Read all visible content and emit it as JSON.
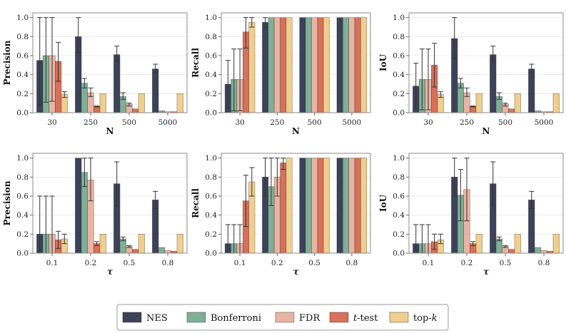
{
  "legend": [
    {
      "label": "NES",
      "italic": false
    },
    {
      "label": "Bonferroni",
      "italic": false
    },
    {
      "label": "FDR",
      "italic": false
    },
    {
      "label": "t",
      "suffix": "-test",
      "italic": true
    },
    {
      "label": "top-",
      "suffix": "k",
      "italic_suffix": true
    }
  ],
  "colors": {
    "NES": "#3c4259",
    "Bonferroni": "#7fb096",
    "FDR": "#e8b4a4",
    "t-test": "#d8705a",
    "top-k": "#f0cf8e",
    "frame": "#888888",
    "grid": "#ececec",
    "errorbar": "#333333"
  },
  "chart_data": [
    {
      "type": "bar",
      "id": "precision-n",
      "xlabel": "N",
      "ylabel": "Precision",
      "categories": [
        "30",
        "250",
        "500",
        "5000"
      ],
      "ylim": [
        0,
        1.05
      ],
      "yticks": [
        "0.0",
        "0.2",
        "0.4",
        "0.6",
        "0.8",
        "1.0"
      ],
      "series": [
        {
          "name": "NES",
          "values": [
            0.55,
            0.8,
            0.61,
            0.46
          ],
          "err": [
            [
              0.08,
              1.0
            ],
            [
              0.63,
              1.0
            ],
            [
              0.54,
              0.7
            ],
            [
              0.42,
              0.51
            ]
          ]
        },
        {
          "name": "Bonferroni",
          "values": [
            0.6,
            0.31,
            0.17,
            0.02
          ],
          "err": [
            [
              0.11,
              1.0
            ],
            [
              0.26,
              0.36
            ],
            [
              0.14,
              0.21
            ],
            [
              0.02,
              0.02
            ]
          ]
        },
        {
          "name": "FDR",
          "values": [
            0.6,
            0.21,
            0.09,
            0.01
          ],
          "err": [
            [
              0.12,
              1.0
            ],
            [
              0.17,
              0.26
            ],
            [
              0.07,
              0.1
            ],
            [
              0.01,
              0.01
            ]
          ]
        },
        {
          "name": "t-test",
          "values": [
            0.54,
            0.07,
            0.04,
            0.01
          ],
          "err": [
            [
              0.33,
              0.74
            ],
            [
              0.06,
              0.07
            ],
            [
              0.04,
              0.04
            ],
            [
              0.01,
              0.01
            ]
          ]
        },
        {
          "name": "top-k",
          "values": [
            0.19,
            0.2,
            0.2,
            0.2
          ],
          "err": [
            [
              0.16,
              0.22
            ],
            [
              0.2,
              0.2
            ],
            [
              0.2,
              0.2
            ],
            [
              0.2,
              0.2
            ]
          ]
        }
      ]
    },
    {
      "type": "bar",
      "id": "recall-n",
      "xlabel": "N",
      "ylabel": "Recall",
      "categories": [
        "30",
        "250",
        "500",
        "5000"
      ],
      "ylim": [
        0,
        1.05
      ],
      "yticks": [
        "0.0",
        "0.2",
        "0.4",
        "0.6",
        "0.8",
        "1.0"
      ],
      "series": [
        {
          "name": "NES",
          "values": [
            0.3,
            0.95,
            1.0,
            1.0
          ],
          "err": [
            [
              0.05,
              0.55
            ],
            [
              0.9,
              1.0
            ],
            [
              1.0,
              1.0
            ],
            [
              1.0,
              1.0
            ]
          ]
        },
        {
          "name": "Bonferroni",
          "values": [
            0.35,
            1.0,
            1.0,
            1.0
          ],
          "err": [
            [
              0.02,
              0.67
            ],
            [
              1.0,
              1.0
            ],
            [
              1.0,
              1.0
            ],
            [
              1.0,
              1.0
            ]
          ]
        },
        {
          "name": "FDR",
          "values": [
            0.35,
            1.0,
            1.0,
            1.0
          ],
          "err": [
            [
              0.02,
              0.67
            ],
            [
              1.0,
              1.0
            ],
            [
              1.0,
              1.0
            ],
            [
              1.0,
              1.0
            ]
          ]
        },
        {
          "name": "t-test",
          "values": [
            0.85,
            1.0,
            1.0,
            1.0
          ],
          "err": [
            [
              0.68,
              1.0
            ],
            [
              1.0,
              1.0
            ],
            [
              1.0,
              1.0
            ],
            [
              1.0,
              1.0
            ]
          ]
        },
        {
          "name": "top-k",
          "values": [
            0.95,
            1.0,
            1.0,
            1.0
          ],
          "err": [
            [
              0.9,
              1.0
            ],
            [
              1.0,
              1.0
            ],
            [
              1.0,
              1.0
            ],
            [
              1.0,
              1.0
            ]
          ]
        }
      ]
    },
    {
      "type": "bar",
      "id": "iou-n",
      "xlabel": "N",
      "ylabel": "IoU",
      "categories": [
        "30",
        "250",
        "500",
        "5000"
      ],
      "ylim": [
        0,
        1.05
      ],
      "yticks": [
        "0.0",
        "0.2",
        "0.4",
        "0.6",
        "0.8",
        "1.0"
      ],
      "series": [
        {
          "name": "NES",
          "values": [
            0.28,
            0.78,
            0.61,
            0.46
          ],
          "err": [
            [
              0.04,
              0.52
            ],
            [
              0.57,
              1.0
            ],
            [
              0.54,
              0.7
            ],
            [
              0.42,
              0.51
            ]
          ]
        },
        {
          "name": "Bonferroni",
          "values": [
            0.35,
            0.31,
            0.17,
            0.02
          ],
          "err": [
            [
              0.03,
              0.67
            ],
            [
              0.26,
              0.36
            ],
            [
              0.14,
              0.21
            ],
            [
              0.02,
              0.02
            ]
          ]
        },
        {
          "name": "FDR",
          "values": [
            0.35,
            0.21,
            0.09,
            0.01
          ],
          "err": [
            [
              0.03,
              0.67
            ],
            [
              0.17,
              0.26
            ],
            [
              0.07,
              0.1
            ],
            [
              0.01,
              0.01
            ]
          ]
        },
        {
          "name": "t-test",
          "values": [
            0.5,
            0.07,
            0.04,
            0.01
          ],
          "err": [
            [
              0.27,
              0.73
            ],
            [
              0.06,
              0.07
            ],
            [
              0.04,
              0.04
            ],
            [
              0.01,
              0.01
            ]
          ]
        },
        {
          "name": "top-k",
          "values": [
            0.19,
            0.2,
            0.2,
            0.2
          ],
          "err": [
            [
              0.16,
              0.22
            ],
            [
              0.2,
              0.2
            ],
            [
              0.2,
              0.2
            ],
            [
              0.2,
              0.2
            ]
          ]
        }
      ]
    },
    {
      "type": "bar",
      "id": "precision-tau",
      "xlabel": "τ",
      "ylabel": "Precision",
      "categories": [
        "0.1",
        "0.2",
        "0.5",
        "0.8"
      ],
      "ylim": [
        0,
        1.05
      ],
      "yticks": [
        "0.0",
        "0.2",
        "0.4",
        "0.6",
        "0.8",
        "1.0"
      ],
      "series": [
        {
          "name": "NES",
          "values": [
            0.2,
            1.0,
            0.73,
            0.56
          ],
          "err": [
            [
              0.0,
              0.6
            ],
            [
              1.0,
              1.0
            ],
            [
              0.5,
              0.96
            ],
            [
              0.47,
              0.65
            ]
          ]
        },
        {
          "name": "Bonferroni",
          "values": [
            0.2,
            0.85,
            0.15,
            0.06
          ],
          "err": [
            [
              0.0,
              0.6
            ],
            [
              0.7,
              1.0
            ],
            [
              0.13,
              0.17
            ],
            [
              0.06,
              0.06
            ]
          ]
        },
        {
          "name": "FDR",
          "values": [
            0.2,
            0.77,
            0.07,
            0.03
          ],
          "err": [
            [
              0.0,
              0.6
            ],
            [
              0.55,
              1.0
            ],
            [
              0.06,
              0.08
            ],
            [
              0.03,
              0.03
            ]
          ]
        },
        {
          "name": "t-test",
          "values": [
            0.14,
            0.1,
            0.04,
            0.02
          ],
          "err": [
            [
              0.05,
              0.23
            ],
            [
              0.08,
              0.12
            ],
            [
              0.04,
              0.04
            ],
            [
              0.02,
              0.02
            ]
          ]
        },
        {
          "name": "top-k",
          "values": [
            0.15,
            0.2,
            0.2,
            0.2
          ],
          "err": [
            [
              0.1,
              0.2
            ],
            [
              0.2,
              0.2
            ],
            [
              0.2,
              0.2
            ],
            [
              0.2,
              0.2
            ]
          ]
        }
      ]
    },
    {
      "type": "bar",
      "id": "recall-tau",
      "xlabel": "τ",
      "ylabel": "Recall",
      "categories": [
        "0.1",
        "0.2",
        "0.5",
        "0.8"
      ],
      "ylim": [
        0,
        1.05
      ],
      "yticks": [
        "0.0",
        "0.2",
        "0.4",
        "0.6",
        "0.8",
        "1.0"
      ],
      "series": [
        {
          "name": "NES",
          "values": [
            0.1,
            0.8,
            1.0,
            1.0
          ],
          "err": [
            [
              0.0,
              0.3
            ],
            [
              0.6,
              1.0
            ],
            [
              1.0,
              1.0
            ],
            [
              1.0,
              1.0
            ]
          ]
        },
        {
          "name": "Bonferroni",
          "values": [
            0.1,
            0.7,
            1.0,
            1.0
          ],
          "err": [
            [
              0.0,
              0.3
            ],
            [
              0.5,
              1.0
            ],
            [
              1.0,
              1.0
            ],
            [
              1.0,
              1.0
            ]
          ]
        },
        {
          "name": "FDR",
          "values": [
            0.1,
            0.8,
            1.0,
            1.0
          ],
          "err": [
            [
              0.0,
              0.3
            ],
            [
              0.6,
              1.0
            ],
            [
              1.0,
              1.0
            ],
            [
              1.0,
              1.0
            ]
          ]
        },
        {
          "name": "t-test",
          "values": [
            0.55,
            0.95,
            1.0,
            1.0
          ],
          "err": [
            [
              0.28,
              0.82
            ],
            [
              0.88,
              1.0
            ],
            [
              1.0,
              1.0
            ],
            [
              1.0,
              1.0
            ]
          ]
        },
        {
          "name": "top-k",
          "values": [
            0.75,
            1.0,
            1.0,
            1.0
          ],
          "err": [
            [
              0.6,
              0.9
            ],
            [
              1.0,
              1.0
            ],
            [
              1.0,
              1.0
            ],
            [
              1.0,
              1.0
            ]
          ]
        }
      ]
    },
    {
      "type": "bar",
      "id": "iou-tau",
      "xlabel": "τ",
      "ylabel": "IoU",
      "categories": [
        "0.1",
        "0.2",
        "0.5",
        "0.8"
      ],
      "ylim": [
        0,
        1.05
      ],
      "yticks": [
        "0.0",
        "0.2",
        "0.4",
        "0.6",
        "0.8",
        "1.0"
      ],
      "series": [
        {
          "name": "NES",
          "values": [
            0.1,
            0.8,
            0.73,
            0.56
          ],
          "err": [
            [
              0.0,
              0.3
            ],
            [
              0.6,
              1.0
            ],
            [
              0.5,
              0.96
            ],
            [
              0.47,
              0.65
            ]
          ]
        },
        {
          "name": "Bonferroni",
          "values": [
            0.1,
            0.61,
            0.15,
            0.06
          ],
          "err": [
            [
              0.0,
              0.3
            ],
            [
              0.34,
              0.88
            ],
            [
              0.13,
              0.17
            ],
            [
              0.06,
              0.06
            ]
          ]
        },
        {
          "name": "FDR",
          "values": [
            0.1,
            0.67,
            0.07,
            0.03
          ],
          "err": [
            [
              0.0,
              0.3
            ],
            [
              0.34,
              1.0
            ],
            [
              0.06,
              0.08
            ],
            [
              0.03,
              0.03
            ]
          ]
        },
        {
          "name": "t-test",
          "values": [
            0.12,
            0.1,
            0.04,
            0.02
          ],
          "err": [
            [
              0.04,
              0.2
            ],
            [
              0.08,
              0.12
            ],
            [
              0.04,
              0.04
            ],
            [
              0.02,
              0.02
            ]
          ]
        },
        {
          "name": "top-k",
          "values": [
            0.14,
            0.2,
            0.2,
            0.2
          ],
          "err": [
            [
              0.1,
              0.2
            ],
            [
              0.2,
              0.2
            ],
            [
              0.2,
              0.2
            ],
            [
              0.2,
              0.2
            ]
          ]
        }
      ]
    }
  ]
}
